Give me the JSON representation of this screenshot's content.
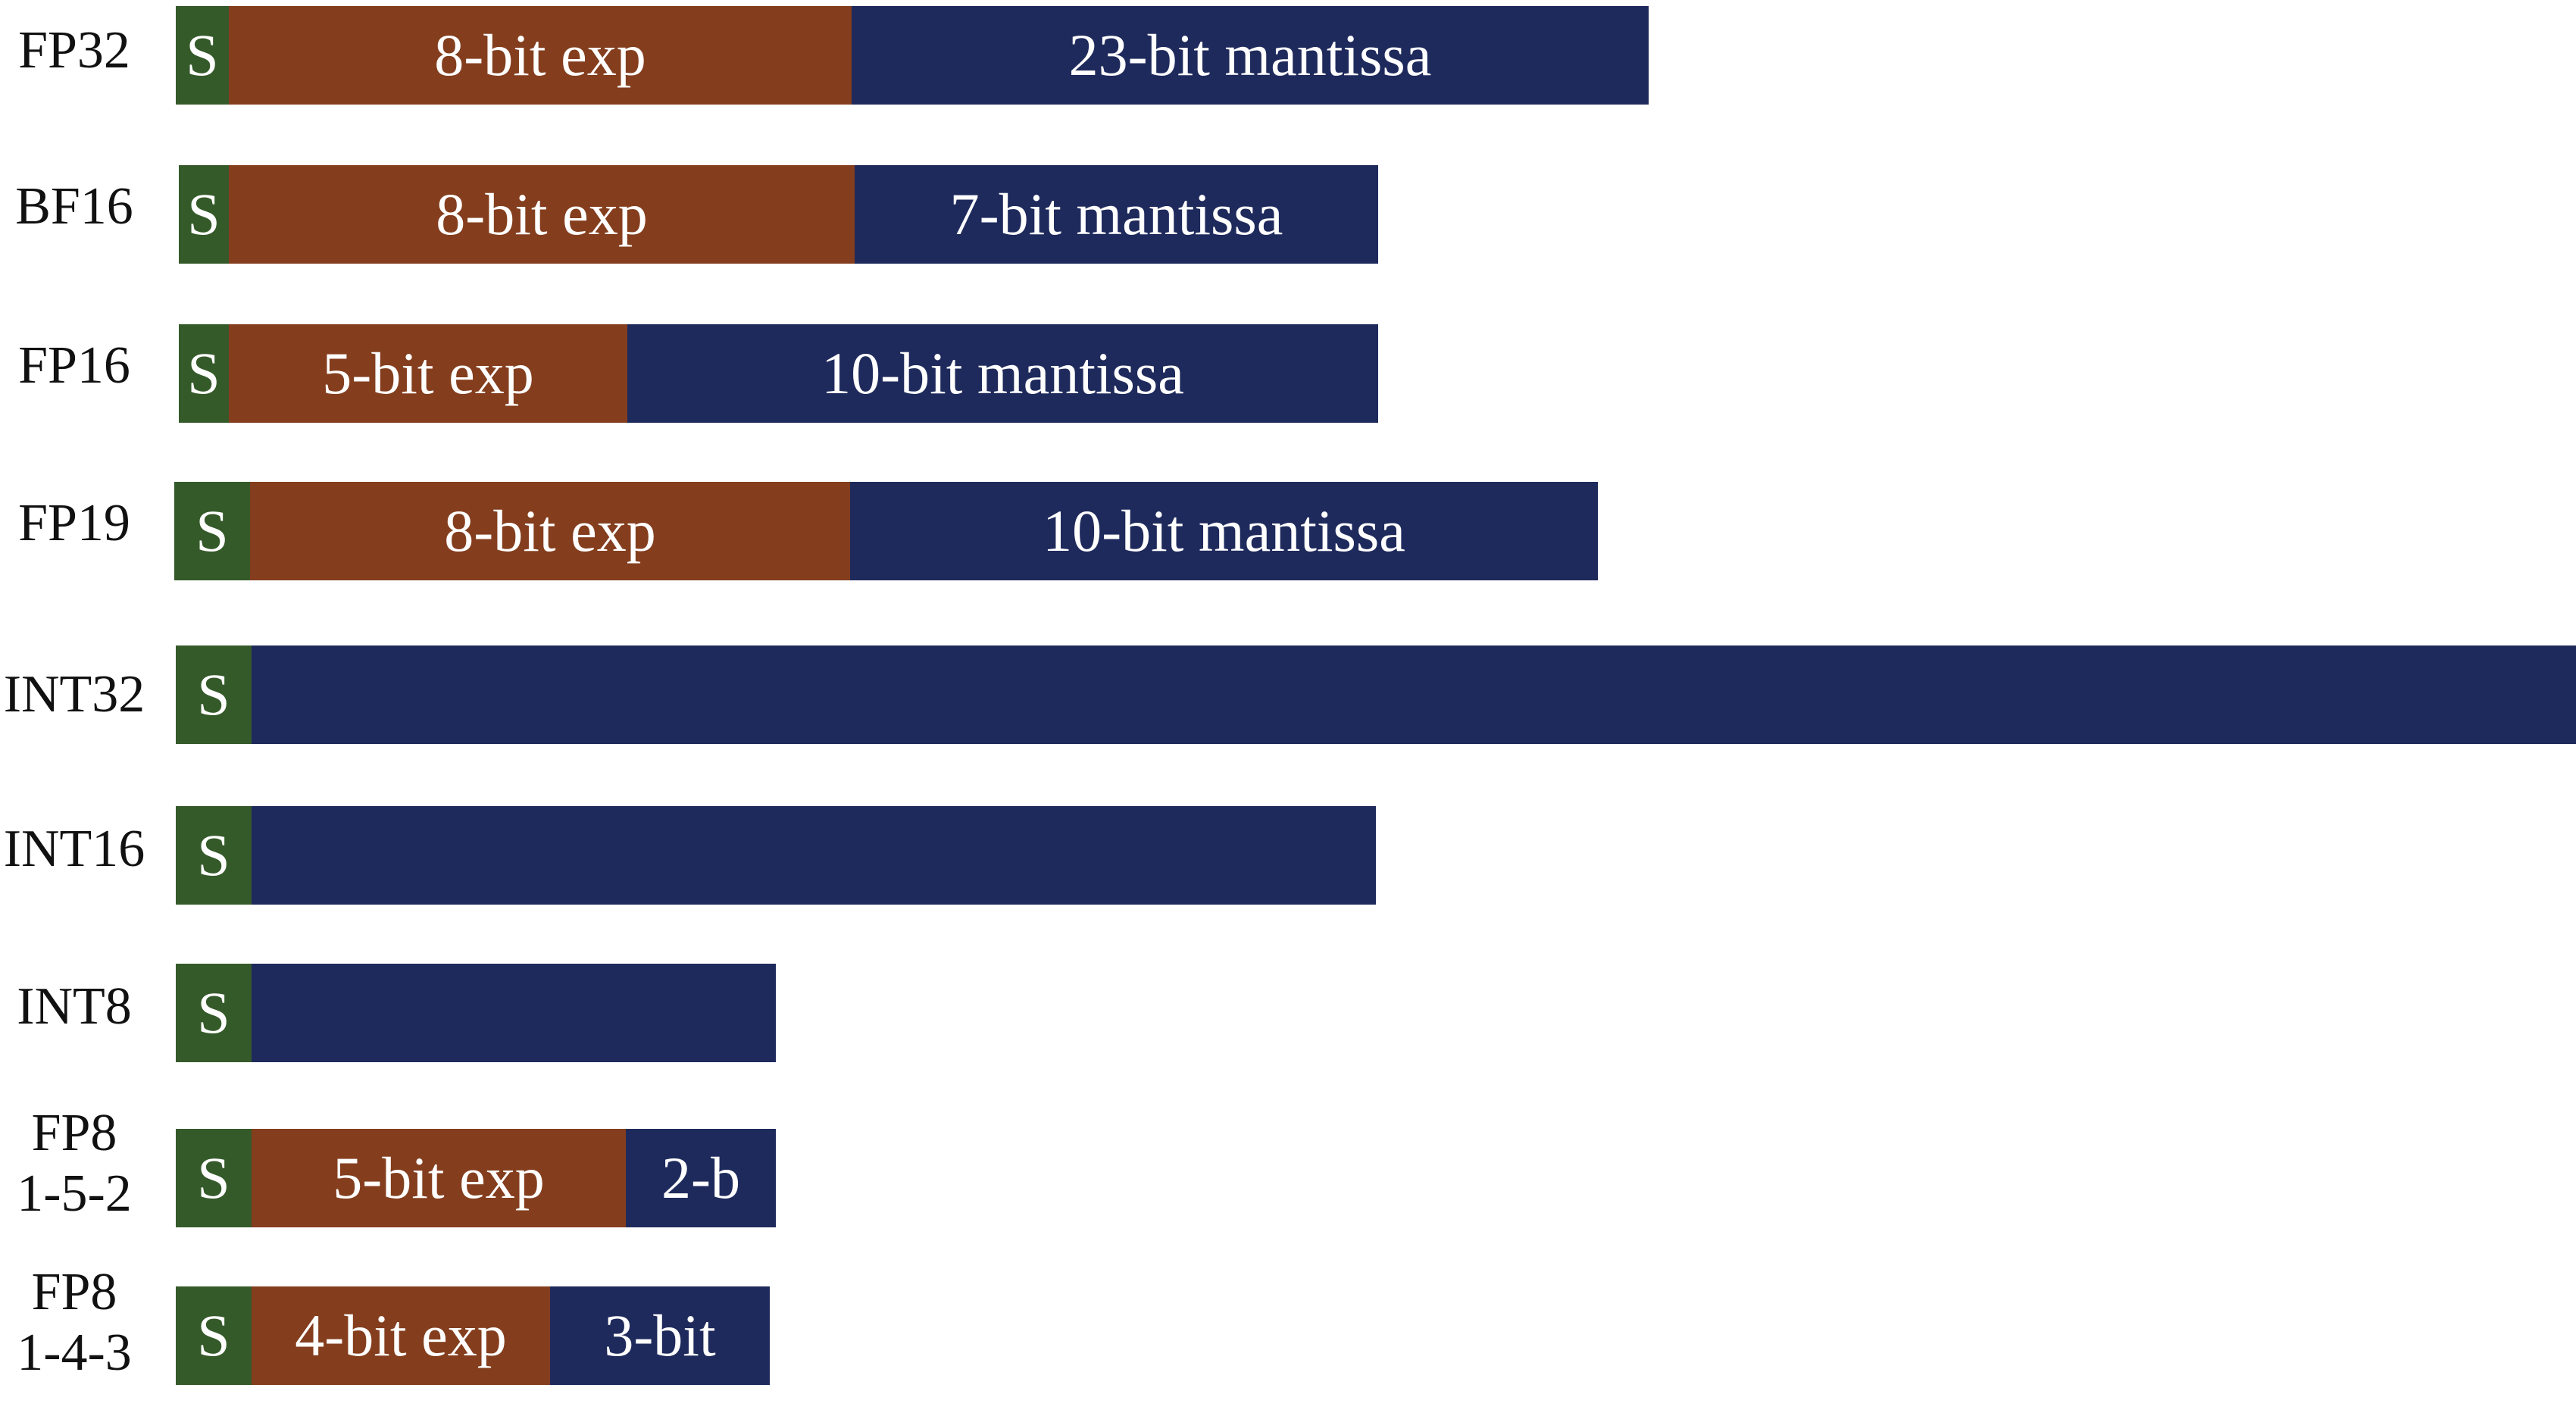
{
  "formats": [
    {
      "id": "fp32",
      "label_lines": [
        "FP32"
      ],
      "segments": [
        {
          "kind": "sign",
          "label": "S"
        },
        {
          "kind": "exp",
          "label": "8-bit exp"
        },
        {
          "kind": "man",
          "label": "23-bit mantissa"
        }
      ]
    },
    {
      "id": "bf16",
      "label_lines": [
        "BF16"
      ],
      "segments": [
        {
          "kind": "sign",
          "label": "S"
        },
        {
          "kind": "exp",
          "label": "8-bit exp"
        },
        {
          "kind": "man",
          "label": "7-bit mantissa"
        }
      ]
    },
    {
      "id": "fp16",
      "label_lines": [
        "FP16"
      ],
      "segments": [
        {
          "kind": "sign",
          "label": "S"
        },
        {
          "kind": "exp",
          "label": "5-bit exp"
        },
        {
          "kind": "man",
          "label": "10-bit mantissa"
        }
      ]
    },
    {
      "id": "fp19",
      "label_lines": [
        "FP19"
      ],
      "segments": [
        {
          "kind": "sign",
          "label": "S"
        },
        {
          "kind": "exp",
          "label": "8-bit exp"
        },
        {
          "kind": "man",
          "label": "10-bit mantissa"
        }
      ]
    },
    {
      "id": "int32",
      "label_lines": [
        "INT32"
      ],
      "segments": [
        {
          "kind": "sign",
          "label": "S"
        },
        {
          "kind": "man",
          "label": ""
        }
      ]
    },
    {
      "id": "int16",
      "label_lines": [
        "INT16"
      ],
      "segments": [
        {
          "kind": "sign",
          "label": "S"
        },
        {
          "kind": "man",
          "label": ""
        }
      ]
    },
    {
      "id": "int8",
      "label_lines": [
        "INT8"
      ],
      "segments": [
        {
          "kind": "sign",
          "label": "S"
        },
        {
          "kind": "man",
          "label": ""
        }
      ]
    },
    {
      "id": "fp8-152",
      "label_lines": [
        "FP8",
        "1-5-2"
      ],
      "segments": [
        {
          "kind": "sign",
          "label": "S"
        },
        {
          "kind": "exp",
          "label": "5-bit exp"
        },
        {
          "kind": "man",
          "label": "2-b"
        }
      ]
    },
    {
      "id": "fp8-143",
      "label_lines": [
        "FP8",
        "1-4-3"
      ],
      "segments": [
        {
          "kind": "sign",
          "label": "S"
        },
        {
          "kind": "exp",
          "label": "4-bit exp"
        },
        {
          "kind": "man",
          "label": "3-bit"
        }
      ]
    }
  ],
  "colors": {
    "sign": "#355a2a",
    "exp": "#843e1e",
    "man": "#1f2a5c"
  }
}
